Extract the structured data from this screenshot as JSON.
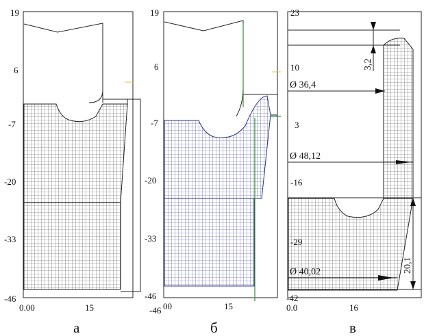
{
  "panels": [
    {
      "id": "a",
      "label": "а",
      "y_ticks": [
        "19",
        "6",
        "-7",
        "-20",
        "-33",
        "-46"
      ],
      "x_ticks": [
        "0.00",
        "15"
      ]
    },
    {
      "id": "b",
      "label": "б",
      "y_ticks": [
        "19",
        "6",
        "-7",
        "-20",
        "-33",
        "-46",
        "-46"
      ],
      "x_ticks": [
        "00",
        "15"
      ]
    },
    {
      "id": "v",
      "label": "в",
      "y_ticks": [
        "23",
        "10",
        "3",
        "-16",
        "-29",
        "-42"
      ],
      "x_ticks": [
        "0.0",
        "16"
      ],
      "dimensions": {
        "d1": "Ø 36,4",
        "d2": "Ø 48,12",
        "d3": "Ø 40,02",
        "h_top": "3,2",
        "h_bottom": "20,1"
      }
    }
  ],
  "colors": {
    "mesh_gray": "#3a3a3a",
    "mesh_blue": "#2a3488",
    "green_line": "#2e8b2e",
    "yellow_mark": "#e0c040",
    "dark": "#111111"
  }
}
